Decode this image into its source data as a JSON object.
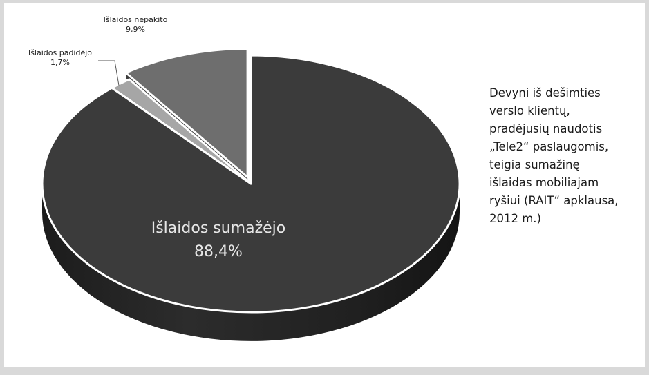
{
  "chart_data": {
    "type": "pie",
    "slices": [
      {
        "label": "Išlaidos sumažėjo",
        "value": 88.4,
        "value_text": "88,4%",
        "color": "#3b3b3b"
      },
      {
        "label": "Išlaidos padidėjo",
        "value": 1.7,
        "value_text": "1,7%",
        "color": "#a6a6a6"
      },
      {
        "label": "Išlaidos nepakito",
        "value": 9.9,
        "value_text": "9,9%",
        "color": "#6e6e6e"
      }
    ],
    "exploded_slice": "Išlaidos nepakito",
    "style": "3d"
  },
  "caption_lines": [
    "Devyni iš dešimties",
    "verslo klientų,",
    "pradėjusių naudotis",
    "„Tele2“ paslaugomis,",
    "teigia sumažinę",
    "išlaidas mobiliajam",
    "ryšiui (RAIT“ apklausa,",
    "2012 m.)"
  ]
}
